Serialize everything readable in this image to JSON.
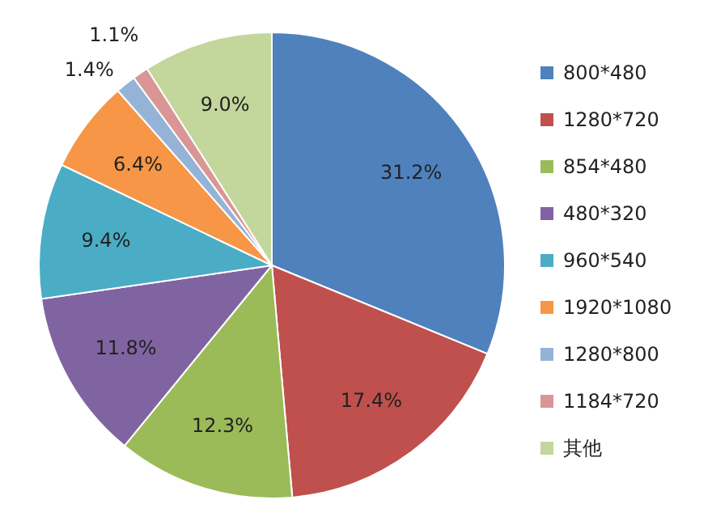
{
  "chart_data": {
    "type": "pie",
    "categories": [
      "800*480",
      "1280*720",
      "854*480",
      "480*320",
      "960*540",
      "1920*1080",
      "1280*800",
      "1184*720",
      "其他"
    ],
    "values": [
      31.2,
      17.4,
      12.3,
      11.8,
      9.4,
      6.4,
      1.4,
      1.1,
      9.0
    ],
    "colors": [
      "#4f81bd",
      "#c0504d",
      "#9bbb59",
      "#8064a2",
      "#4bacc6",
      "#f79646",
      "#95b3d7",
      "#d99694",
      "#c3d69b"
    ],
    "value_labels": [
      "31.2%",
      "17.4%",
      "12.3%",
      "11.8%",
      "9.4%",
      "6.4%",
      "1.4%",
      "1.1%",
      "9.0%"
    ],
    "legend": "right"
  }
}
